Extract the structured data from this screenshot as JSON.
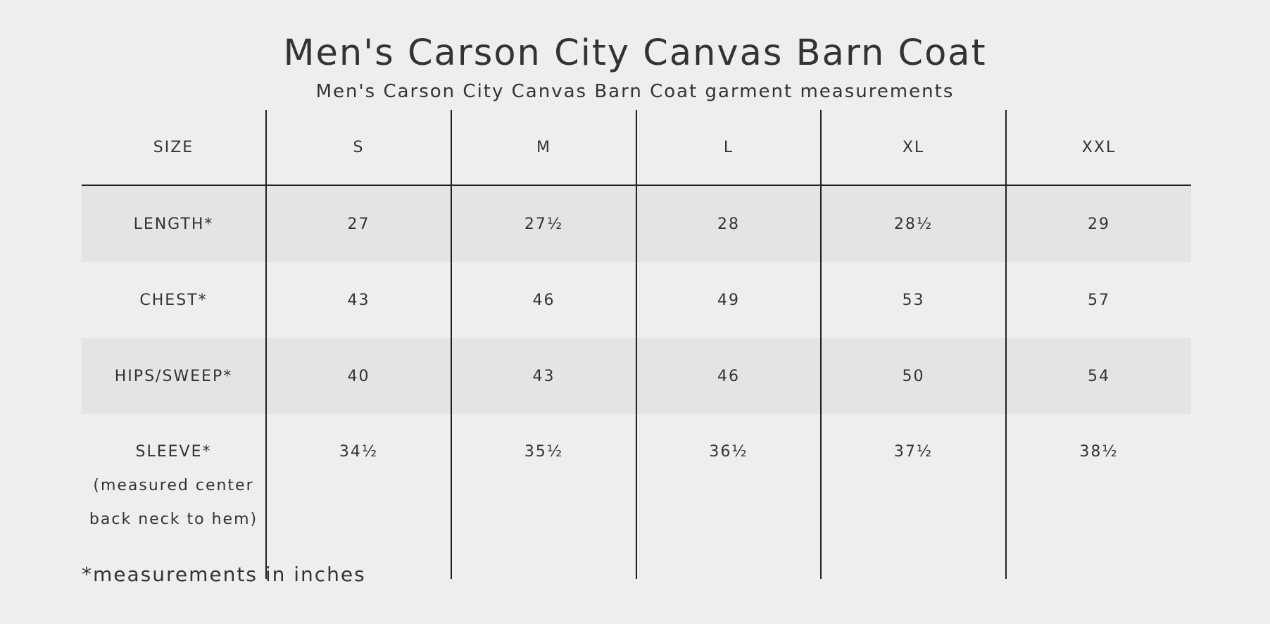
{
  "title": "Men's Carson City Canvas Barn Coat",
  "subtitle": "Men's Carson City Canvas Barn Coat garment measurements",
  "table": {
    "header": {
      "label": "SIZE",
      "sizes": [
        "S",
        "M",
        "L",
        "XL",
        "XXL"
      ]
    },
    "rows": [
      {
        "label": "LENGTH*",
        "values": [
          "27",
          "27½",
          "28",
          "28½",
          "29"
        ]
      },
      {
        "label": "CHEST*",
        "values": [
          "43",
          "46",
          "49",
          "53",
          "57"
        ]
      },
      {
        "label": "HIPS/SWEEP*",
        "values": [
          "40",
          "43",
          "46",
          "50",
          "54"
        ]
      },
      {
        "label": "SLEEVE*",
        "note_line1": "(measured center",
        "note_line2": "back neck to hem)",
        "values": [
          "34½",
          "35½",
          "36½",
          "37½",
          "38½"
        ]
      }
    ]
  },
  "footnote": "*measurements in inches"
}
